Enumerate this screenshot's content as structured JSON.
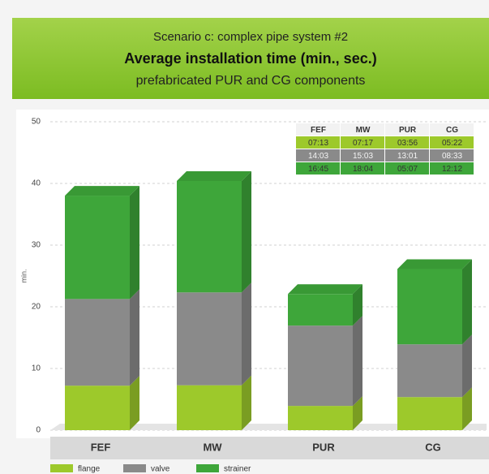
{
  "chart_data": {
    "type": "bar",
    "stacked": true,
    "title_lines": [
      "Scenario c: complex pipe system #2",
      "Average installation time (min., sec.)",
      "prefabricated PUR and CG components"
    ],
    "y_label": "min.",
    "categories": [
      "FEF",
      "MW",
      "PUR",
      "CG"
    ],
    "series": [
      {
        "name": "flange",
        "color": "#9dc92b",
        "values": [
          7.2167,
          7.2833,
          3.9333,
          5.3667
        ],
        "value_labels": [
          "07:13",
          "07:17",
          "03:56",
          "05:22"
        ]
      },
      {
        "name": "valve",
        "color": "#8a8a8a",
        "values": [
          14.05,
          15.05,
          13.0167,
          8.55
        ],
        "value_labels": [
          "14:03",
          "15:03",
          "13:01",
          "08:33"
        ]
      },
      {
        "name": "strainer",
        "color": "#3ea63a",
        "values": [
          16.75,
          18.0667,
          5.1167,
          12.2
        ],
        "value_labels": [
          "16:45",
          "18:04",
          "05:07",
          "12:12"
        ]
      }
    ],
    "ylim": [
      0,
      50
    ],
    "yticks": [
      0,
      10,
      20,
      30,
      40,
      50
    ],
    "grid": true,
    "legend": "bottom"
  }
}
